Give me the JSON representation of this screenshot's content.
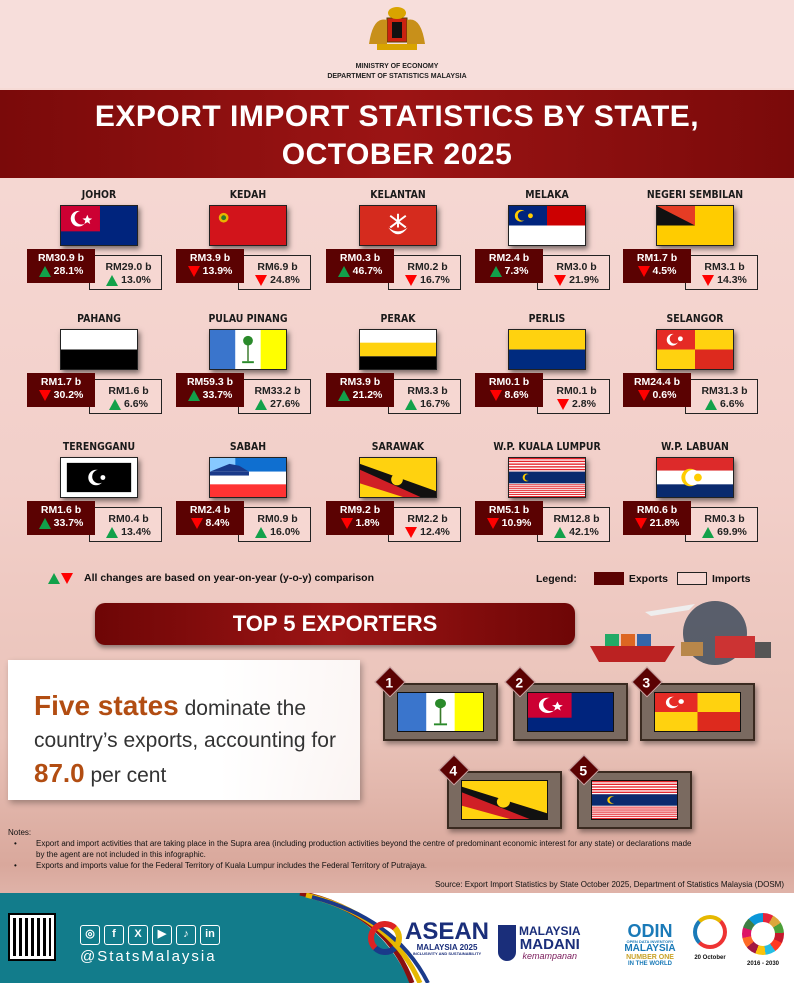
{
  "header": {
    "ministry": "MINISTRY OF ECONOMY",
    "department": "DEPARTMENT OF STATISTICS MALAYSIA",
    "title_line1": "EXPORT IMPORT STATISTICS BY STATE,",
    "title_line2": "OCTOBER 2025"
  },
  "states": [
    {
      "name": "JOHOR",
      "flag": "johor",
      "exports": "RM30.9 b",
      "exports_change": "28.1%",
      "exports_dir": "up",
      "imports": "RM29.0 b",
      "imports_change": "13.0%",
      "imports_dir": "up"
    },
    {
      "name": "KEDAH",
      "flag": "kedah",
      "exports": "RM3.9 b",
      "exports_change": "13.9%",
      "exports_dir": "down",
      "imports": "RM6.9 b",
      "imports_change": "24.8%",
      "imports_dir": "down"
    },
    {
      "name": "KELANTAN",
      "flag": "kelantan",
      "exports": "RM0.3 b",
      "exports_change": "46.7%",
      "exports_dir": "up",
      "imports": "RM0.2 b",
      "imports_change": "16.7%",
      "imports_dir": "down"
    },
    {
      "name": "MELAKA",
      "flag": "melaka",
      "exports": "RM2.4 b",
      "exports_change": "7.3%",
      "exports_dir": "up",
      "imports": "RM3.0 b",
      "imports_change": "21.9%",
      "imports_dir": "down"
    },
    {
      "name": "NEGERI SEMBILAN",
      "flag": "nsembilan",
      "exports": "RM1.7 b",
      "exports_change": "4.5%",
      "exports_dir": "down",
      "imports": "RM3.1 b",
      "imports_change": "14.3%",
      "imports_dir": "down"
    },
    {
      "name": "PAHANG",
      "flag": "pahang",
      "exports": "RM1.7 b",
      "exports_change": "30.2%",
      "exports_dir": "down",
      "imports": "RM1.6 b",
      "imports_change": "6.6%",
      "imports_dir": "up"
    },
    {
      "name": "PULAU PINANG",
      "flag": "penang",
      "exports": "RM59.3 b",
      "exports_change": "33.7%",
      "exports_dir": "up",
      "imports": "RM33.2 b",
      "imports_change": "27.6%",
      "imports_dir": "up"
    },
    {
      "name": "PERAK",
      "flag": "perak",
      "exports": "RM3.9 b",
      "exports_change": "21.2%",
      "exports_dir": "up",
      "imports": "RM3.3 b",
      "imports_change": "16.7%",
      "imports_dir": "up"
    },
    {
      "name": "PERLIS",
      "flag": "perlis",
      "exports": "RM0.1 b",
      "exports_change": "8.6%",
      "exports_dir": "down",
      "imports": "RM0.1 b",
      "imports_change": "2.8%",
      "imports_dir": "down"
    },
    {
      "name": "SELANGOR",
      "flag": "selangor",
      "exports": "RM24.4 b",
      "exports_change": "0.6%",
      "exports_dir": "down",
      "imports": "RM31.3 b",
      "imports_change": "6.6%",
      "imports_dir": "up"
    },
    {
      "name": "TERENGGANU",
      "flag": "terengganu",
      "exports": "RM1.6 b",
      "exports_change": "33.7%",
      "exports_dir": "up",
      "imports": "RM0.4 b",
      "imports_change": "13.4%",
      "imports_dir": "up"
    },
    {
      "name": "SABAH",
      "flag": "sabah",
      "exports": "RM2.4 b",
      "exports_change": "8.4%",
      "exports_dir": "down",
      "imports": "RM0.9 b",
      "imports_change": "16.0%",
      "imports_dir": "up"
    },
    {
      "name": "SARAWAK",
      "flag": "sarawak",
      "exports": "RM9.2 b",
      "exports_change": "1.8%",
      "exports_dir": "down",
      "imports": "RM2.2 b",
      "imports_change": "12.4%",
      "imports_dir": "down"
    },
    {
      "name": "W.P. KUALA LUMPUR",
      "flag": "kl",
      "exports": "RM5.1 b",
      "exports_change": "10.9%",
      "exports_dir": "down",
      "imports": "RM12.8 b",
      "imports_change": "42.1%",
      "imports_dir": "up"
    },
    {
      "name": "W.P. LABUAN",
      "flag": "labuan",
      "exports": "RM0.6 b",
      "exports_change": "21.8%",
      "exports_dir": "down",
      "imports": "RM0.3 b",
      "imports_change": "69.9%",
      "imports_dir": "up"
    }
  ],
  "legend": {
    "note": "All changes are based on year-on-year (y-o-y) comparison",
    "label": "Legend:",
    "exports": "Exports",
    "imports": "Imports",
    "exports_color": "#5b0202",
    "imports_color": "#f6d7d2",
    "up_color": "#12a14a",
    "down_color": "#ff0000"
  },
  "top5": {
    "title": "TOP 5 EXPORTERS",
    "text_big": "Five states",
    "text_1": " dominate the country’s exports, accounting for ",
    "share": "87.0",
    "text_2": " per cent",
    "ranks": [
      {
        "rank": "1",
        "flag": "penang"
      },
      {
        "rank": "2",
        "flag": "johor"
      },
      {
        "rank": "3",
        "flag": "selangor"
      },
      {
        "rank": "4",
        "flag": "sarawak"
      },
      {
        "rank": "5",
        "flag": "kl"
      }
    ]
  },
  "notes": {
    "heading": "Notes:",
    "items": [
      "Export and import activities that are taking place in the Supra area (including production activities beyond the centre of predominant economic interest for any state) or declarations made by the agent are not included in this infographic.",
      "Exports and imports value for the Federal Territory of Kuala Lumpur includes the Federal Territory of Putrajaya."
    ],
    "source": "Source: Export Import Statistics by State October 2025, Department of Statistics Malaysia (DOSM)"
  },
  "footer": {
    "handle": "@StatsMalaysia",
    "social": [
      "instagram",
      "facebook",
      "x",
      "youtube",
      "tiktok",
      "linkedin"
    ],
    "asean": "ASEAN",
    "asean_sub": "MALAYSIA 2025",
    "asean_tag": "INCLUSIVITY AND SUSTAINABILITY",
    "madani": "MALAYSIA",
    "madani2": "MADANI",
    "madani_tag": "kemampanan",
    "odin": "ODIN",
    "odin_sub": "OPEN DATA INVENTORY",
    "odin_my": "MALAYSIA",
    "odin_tag": "NUMBER ONE",
    "odin_world": "IN THE WORLD",
    "stats_day": "20 October",
    "sdg": "2016 - 2030"
  }
}
